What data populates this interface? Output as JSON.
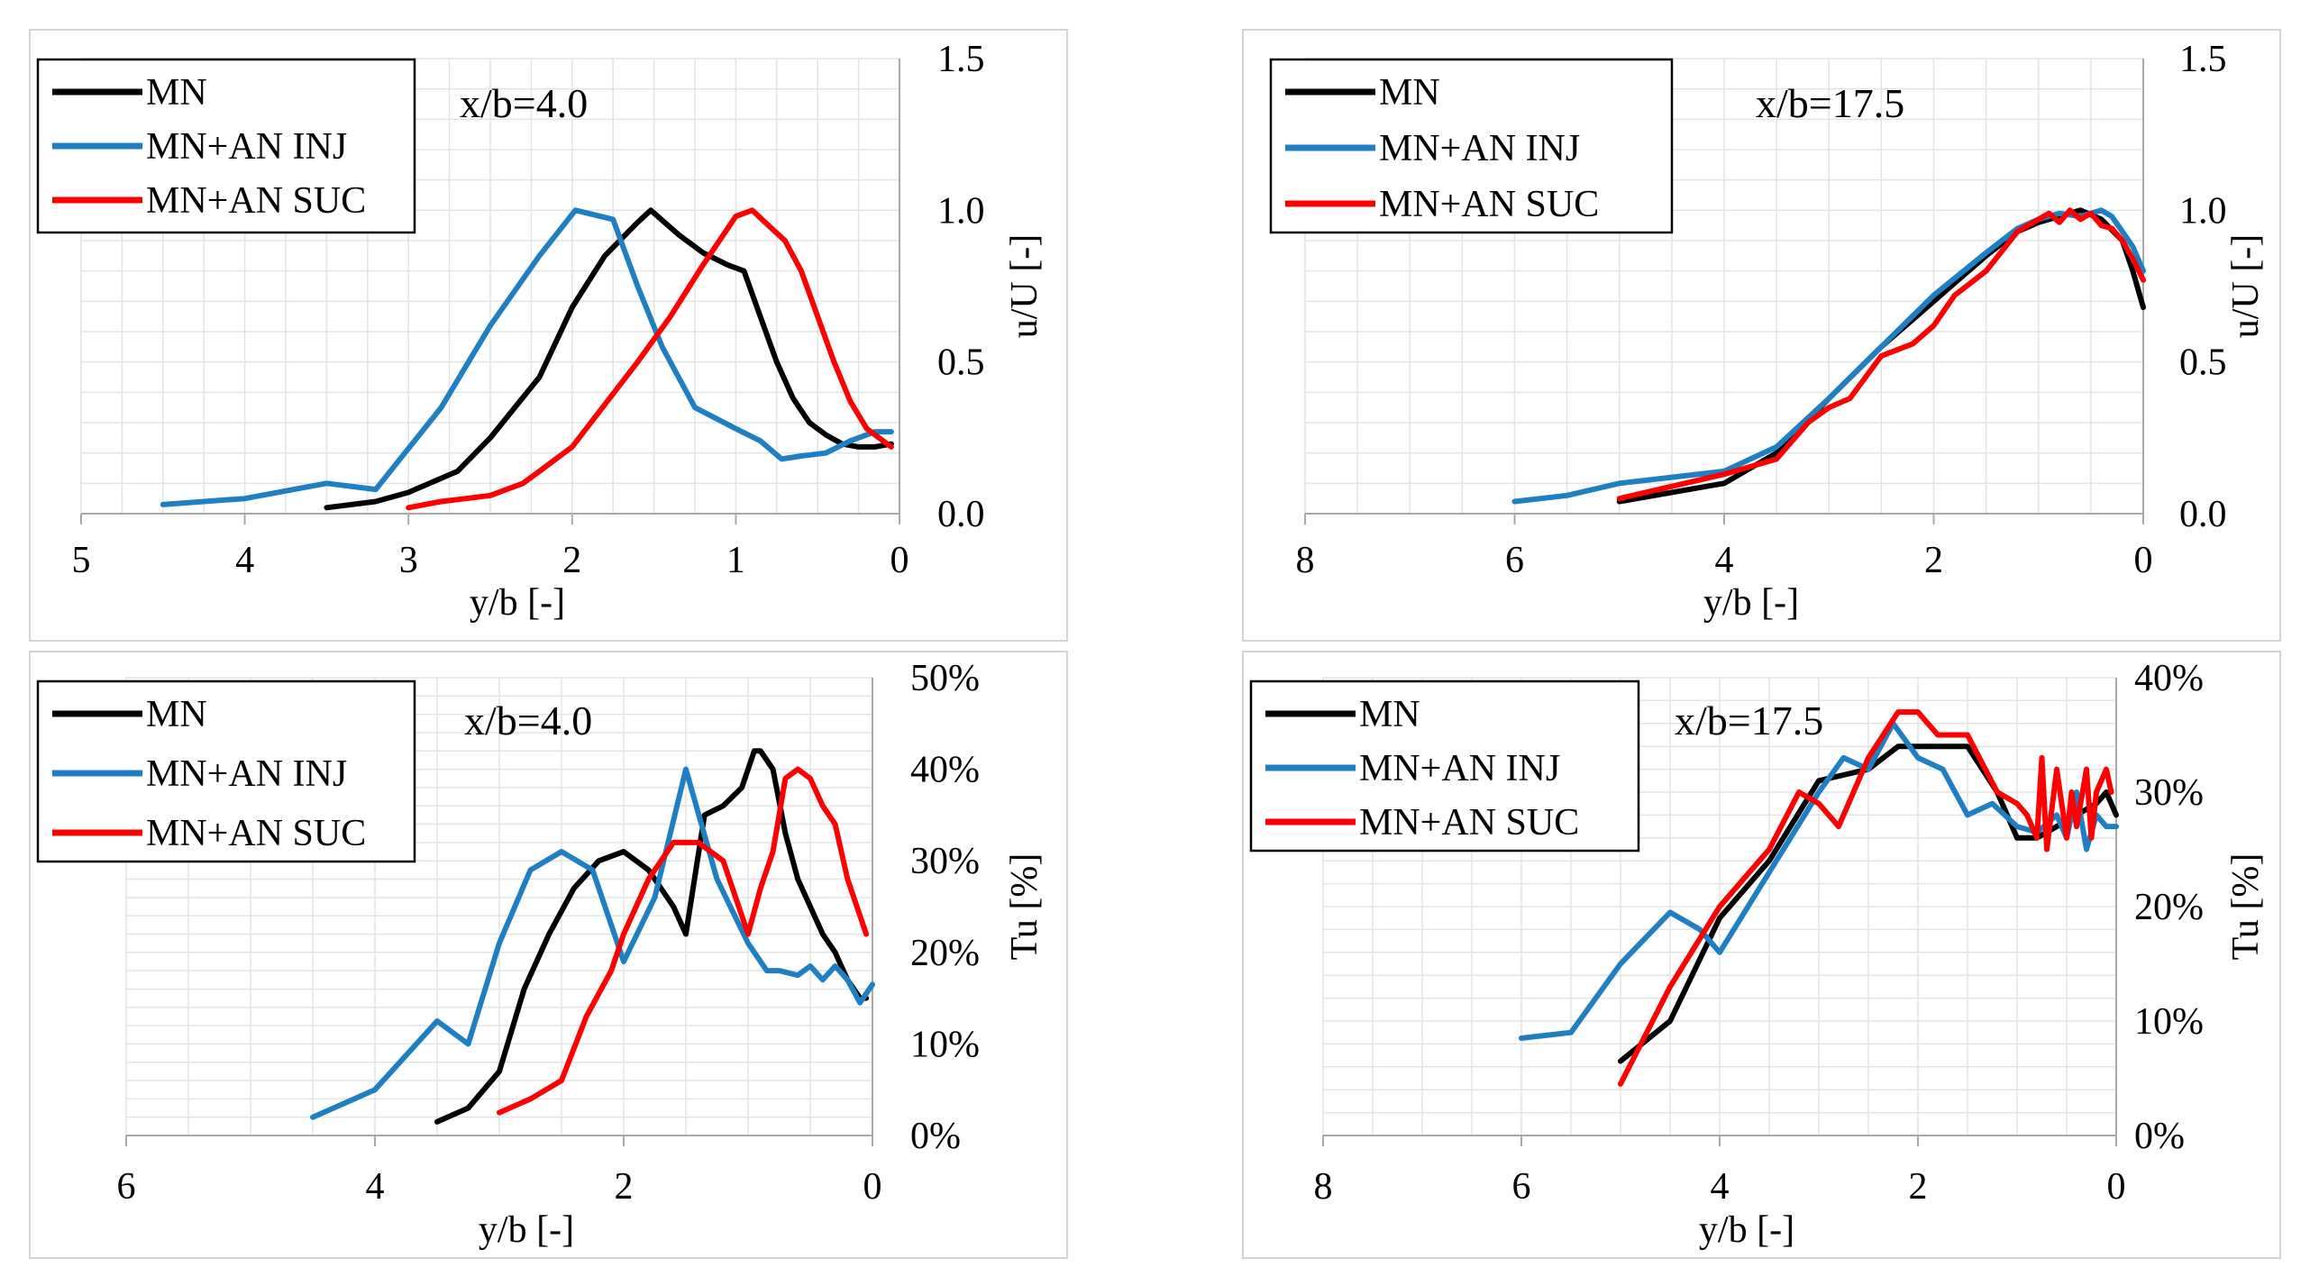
{
  "colors": {
    "MN": "#000000",
    "MN+AN INJ": "#1f7fc4",
    "MN+AN SUC": "#ff0000"
  },
  "chart_data": [
    {
      "type": "line",
      "annotation": "x/b=4.0",
      "xlabel": "y/b [-]",
      "ylabel": "u/U [-]",
      "xlim": [
        5,
        0
      ],
      "ylim": [
        0,
        1.5
      ],
      "xticks": [
        5,
        4,
        3,
        2,
        1,
        0
      ],
      "yticks": [
        0,
        0.5,
        1.0,
        1.5
      ],
      "ytick_labels": [
        "0.0",
        "0.5",
        "1.0",
        "1.5"
      ],
      "xtick_labels": [
        "5",
        "4",
        "3",
        "2",
        "1",
        "0"
      ],
      "legend": [
        "MN",
        "MN+AN INJ",
        "MN+AN SUC"
      ],
      "series": [
        {
          "name": "MN",
          "x": [
            3.5,
            3.2,
            3.0,
            2.7,
            2.5,
            2.2,
            2.0,
            1.8,
            1.6,
            1.52,
            1.35,
            1.2,
            1.05,
            0.95,
            0.85,
            0.75,
            0.65,
            0.55,
            0.45,
            0.35,
            0.25,
            0.15,
            0.05
          ],
          "y": [
            0.02,
            0.04,
            0.07,
            0.14,
            0.25,
            0.45,
            0.68,
            0.85,
            0.96,
            1.0,
            0.92,
            0.86,
            0.82,
            0.8,
            0.65,
            0.5,
            0.38,
            0.3,
            0.26,
            0.23,
            0.22,
            0.22,
            0.23
          ]
        },
        {
          "name": "MN+AN INJ",
          "x": [
            4.5,
            4.0,
            3.5,
            3.2,
            2.8,
            2.5,
            2.2,
            1.98,
            1.75,
            1.6,
            1.45,
            1.25,
            1.0,
            0.85,
            0.72,
            0.6,
            0.45,
            0.3,
            0.15,
            0.05
          ],
          "y": [
            0.03,
            0.05,
            0.1,
            0.08,
            0.35,
            0.62,
            0.85,
            1.0,
            0.97,
            0.75,
            0.55,
            0.35,
            0.28,
            0.24,
            0.18,
            0.19,
            0.2,
            0.24,
            0.27,
            0.27
          ]
        },
        {
          "name": "MN+AN SUC",
          "x": [
            3.0,
            2.8,
            2.5,
            2.3,
            2.2,
            2.0,
            1.8,
            1.6,
            1.4,
            1.2,
            1.0,
            0.9,
            0.8,
            0.7,
            0.6,
            0.5,
            0.4,
            0.3,
            0.2,
            0.1,
            0.05
          ],
          "y": [
            0.02,
            0.04,
            0.06,
            0.1,
            0.14,
            0.22,
            0.36,
            0.5,
            0.65,
            0.82,
            0.98,
            1.0,
            0.95,
            0.9,
            0.8,
            0.65,
            0.5,
            0.37,
            0.28,
            0.24,
            0.22
          ]
        }
      ]
    },
    {
      "type": "line",
      "annotation": "x/b=17.5",
      "xlabel": "y/b [-]",
      "ylabel": "u/U [-]",
      "xlim": [
        8,
        0
      ],
      "ylim": [
        0,
        1.5
      ],
      "xticks": [
        8,
        6,
        4,
        2,
        0
      ],
      "yticks": [
        0,
        0.5,
        1.0,
        1.5
      ],
      "ytick_labels": [
        "0.0",
        "0.5",
        "1.0",
        "1.5"
      ],
      "xtick_labels": [
        "8",
        "6",
        "4",
        "2",
        "0"
      ],
      "legend": [
        "MN",
        "MN+AN INJ",
        "MN+AN SUC"
      ],
      "series": [
        {
          "name": "MN",
          "x": [
            5.0,
            4.5,
            4.0,
            3.5,
            3.0,
            2.5,
            2.0,
            1.5,
            1.2,
            1.0,
            0.8,
            0.6,
            0.4,
            0.2,
            0.1,
            0.0
          ],
          "y": [
            0.04,
            0.07,
            0.1,
            0.2,
            0.38,
            0.55,
            0.7,
            0.85,
            0.93,
            0.96,
            0.98,
            1.0,
            0.97,
            0.9,
            0.8,
            0.68
          ]
        },
        {
          "name": "MN+AN INJ",
          "x": [
            6.0,
            5.5,
            5.0,
            4.5,
            4.0,
            3.5,
            3.0,
            2.5,
            2.0,
            1.5,
            1.2,
            1.0,
            0.8,
            0.6,
            0.4,
            0.3,
            0.2,
            0.1,
            0.0
          ],
          "y": [
            0.04,
            0.06,
            0.1,
            0.12,
            0.14,
            0.22,
            0.38,
            0.55,
            0.72,
            0.86,
            0.94,
            0.97,
            0.99,
            0.98,
            1.0,
            0.98,
            0.93,
            0.88,
            0.8
          ]
        },
        {
          "name": "MN+AN SUC",
          "x": [
            5.0,
            4.5,
            4.0,
            3.5,
            3.2,
            3.0,
            2.8,
            2.5,
            2.2,
            2.0,
            1.8,
            1.5,
            1.2,
            1.0,
            0.9,
            0.8,
            0.7,
            0.6,
            0.5,
            0.4,
            0.3,
            0.2,
            0.1,
            0.0
          ],
          "y": [
            0.05,
            0.09,
            0.13,
            0.18,
            0.3,
            0.35,
            0.38,
            0.52,
            0.56,
            0.62,
            0.72,
            0.8,
            0.93,
            0.97,
            0.99,
            0.96,
            1.0,
            0.97,
            0.99,
            0.95,
            0.94,
            0.9,
            0.84,
            0.77
          ]
        }
      ]
    },
    {
      "type": "line",
      "annotation": "x/b=4.0",
      "xlabel": "y/b [-]",
      "ylabel": "Tu [%]",
      "xlim": [
        6,
        0
      ],
      "ylim": [
        0,
        50
      ],
      "xticks": [
        6,
        4,
        2,
        0
      ],
      "yticks": [
        0,
        10,
        20,
        30,
        40,
        50
      ],
      "ytick_labels": [
        "0%",
        "10%",
        "20%",
        "30%",
        "40%",
        "50%"
      ],
      "xtick_labels": [
        "6",
        "4",
        "2",
        "0"
      ],
      "legend": [
        "MN",
        "MN+AN INJ",
        "MN+AN SUC"
      ],
      "series": [
        {
          "name": "MN",
          "x": [
            3.5,
            3.25,
            3.0,
            2.8,
            2.6,
            2.4,
            2.2,
            2.0,
            1.8,
            1.6,
            1.5,
            1.35,
            1.2,
            1.05,
            0.95,
            0.9,
            0.8,
            0.7,
            0.6,
            0.5,
            0.4,
            0.3,
            0.2,
            0.1,
            0.05
          ],
          "y": [
            1.5,
            3,
            7,
            16,
            22,
            27,
            30,
            31,
            29,
            25,
            22,
            35,
            36,
            38,
            42,
            42,
            40,
            33,
            28,
            25,
            22,
            20,
            17,
            15,
            15
          ]
        },
        {
          "name": "MN+AN INJ",
          "x": [
            4.5,
            4.0,
            3.5,
            3.25,
            3.0,
            2.75,
            2.5,
            2.25,
            2.0,
            1.75,
            1.5,
            1.25,
            1.0,
            0.85,
            0.75,
            0.6,
            0.5,
            0.4,
            0.3,
            0.2,
            0.1,
            0.0
          ],
          "y": [
            2,
            5,
            12.5,
            10,
            21,
            29,
            31,
            29,
            19,
            26,
            40,
            28,
            21,
            18,
            18,
            17.5,
            18.5,
            17,
            18.5,
            17,
            14.5,
            16.5
          ]
        },
        {
          "name": "MN+AN SUC",
          "x": [
            3.0,
            2.75,
            2.5,
            2.3,
            2.1,
            2.0,
            1.8,
            1.6,
            1.4,
            1.2,
            1.0,
            0.9,
            0.8,
            0.7,
            0.6,
            0.5,
            0.4,
            0.3,
            0.2,
            0.1,
            0.05
          ],
          "y": [
            2.5,
            4,
            6,
            13,
            18,
            22,
            28,
            32,
            32,
            30,
            22,
            27,
            31,
            39,
            40,
            39,
            36,
            34,
            28,
            24,
            22
          ]
        }
      ]
    },
    {
      "type": "line",
      "annotation": "x/b=17.5",
      "xlabel": "y/b [-]",
      "ylabel": "Tu [%]",
      "xlim": [
        8,
        0
      ],
      "ylim": [
        0,
        40
      ],
      "xticks": [
        8,
        6,
        4,
        2,
        0
      ],
      "yticks": [
        0,
        10,
        20,
        30,
        40
      ],
      "ytick_labels": [
        "0%",
        "10%",
        "20%",
        "30%",
        "40%"
      ],
      "xtick_labels": [
        "8",
        "6",
        "4",
        "2",
        "0"
      ],
      "legend": [
        "MN",
        "MN+AN INJ",
        "MN+AN SUC"
      ],
      "series": [
        {
          "name": "MN",
          "x": [
            5.0,
            4.5,
            4.0,
            3.5,
            3.0,
            2.5,
            2.2,
            2.0,
            1.5,
            1.2,
            1.0,
            0.8,
            0.6,
            0.4,
            0.2,
            0.1,
            0.0
          ],
          "y": [
            6.5,
            10,
            19,
            24,
            31,
            32,
            34,
            34,
            34,
            30,
            26,
            26,
            27,
            28,
            29,
            30,
            28
          ]
        },
        {
          "name": "MN+AN INJ",
          "x": [
            6.0,
            5.5,
            5.0,
            4.5,
            4.2,
            4.0,
            3.5,
            3.0,
            2.75,
            2.5,
            2.25,
            2.0,
            1.75,
            1.5,
            1.25,
            1.0,
            0.8,
            0.6,
            0.5,
            0.4,
            0.3,
            0.2,
            0.1,
            0.0
          ],
          "y": [
            8.5,
            9,
            15,
            19.5,
            18,
            16,
            23,
            30,
            33,
            32,
            36,
            33,
            32,
            28,
            29,
            27,
            26.5,
            28,
            26,
            30,
            25,
            28,
            27,
            27
          ]
        },
        {
          "name": "MN+AN SUC",
          "x": [
            5.0,
            4.5,
            4.0,
            3.5,
            3.2,
            3.0,
            2.8,
            2.5,
            2.2,
            2.0,
            1.8,
            1.5,
            1.2,
            1.0,
            0.9,
            0.8,
            0.75,
            0.7,
            0.6,
            0.5,
            0.45,
            0.4,
            0.3,
            0.25,
            0.2,
            0.1,
            0.05
          ],
          "y": [
            4.5,
            13,
            20,
            25,
            30,
            29,
            27,
            33,
            37,
            37,
            35,
            35,
            30,
            29,
            28,
            26,
            33,
            25,
            32,
            26,
            30,
            27,
            32,
            26,
            30,
            32,
            30
          ]
        }
      ]
    }
  ]
}
